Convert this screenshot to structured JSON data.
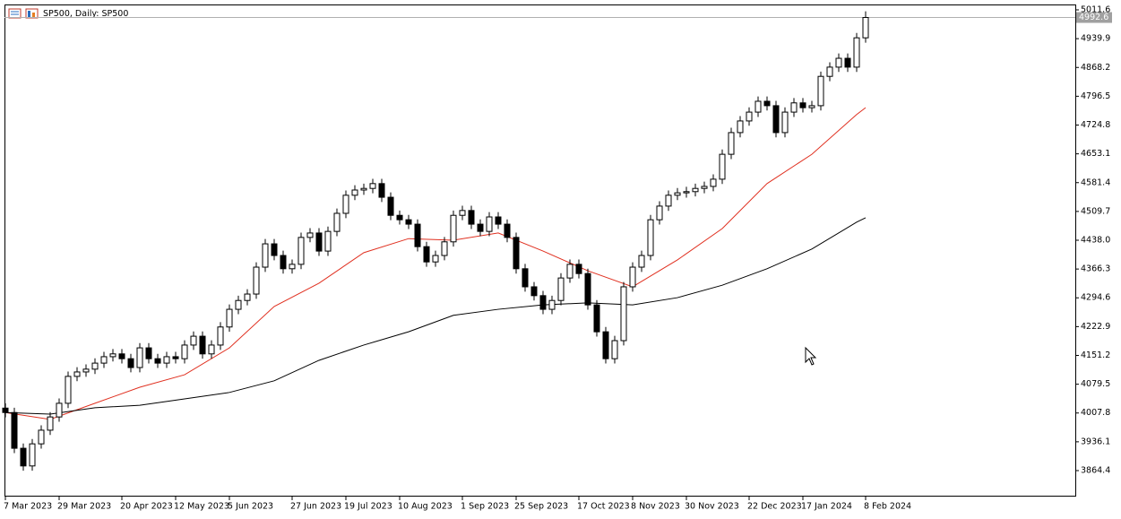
{
  "chart_data": {
    "type": "candlestick",
    "title": "SP500, Daily: SP500",
    "categories": [
      "7 Mar 2023",
      null,
      null,
      null,
      null,
      null,
      "29 Mar 2023",
      null,
      null,
      null,
      null,
      null,
      null,
      "20 Apr 2023",
      null,
      null,
      null,
      null,
      null,
      "12 May 2023",
      null,
      null,
      null,
      null,
      null,
      "5 Jun 2023",
      null,
      null,
      null,
      null,
      null,
      null,
      "27 Jun 2023",
      null,
      null,
      null,
      null,
      null,
      "19 Jul 2023",
      null,
      null,
      null,
      null,
      null,
      "10 Aug 2023",
      null,
      null,
      null,
      null,
      null,
      null,
      "1 Sep 2023",
      null,
      null,
      null,
      null,
      null,
      "25 Sep 2023",
      null,
      null,
      null,
      null,
      null,
      null,
      "17 Oct 2023",
      null,
      null,
      null,
      null,
      null,
      "8 Nov 2023",
      null,
      null,
      null,
      null,
      null,
      "30 Nov 2023",
      null,
      null,
      null,
      null,
      null,
      null,
      "22 Dec 2023",
      null,
      null,
      null,
      null,
      null,
      "17 Jan 2024",
      null,
      null,
      null,
      null,
      null,
      null,
      "8 Feb 2024"
    ],
    "open": [
      4020,
      4009,
      3920,
      3876,
      3931,
      3965,
      3998,
      4032,
      4099,
      4110,
      4117,
      4132,
      4148,
      4155,
      4143,
      4121,
      4170,
      4143,
      4132,
      4148,
      4143,
      4177,
      4199,
      4155,
      4177,
      4222,
      4266,
      4288,
      4304,
      4371,
      4429,
      4400,
      4367,
      4378,
      4445,
      4456,
      4411,
      4460,
      4505,
      4550,
      4563,
      4567,
      4579,
      4545,
      4500,
      4489,
      4478,
      4422,
      4384,
      4400,
      4434,
      4500,
      4512,
      4478,
      4460,
      4496,
      4478,
      4445,
      4367,
      4322,
      4300,
      4266,
      4288,
      4344,
      4378,
      4355,
      4277,
      4210,
      4143,
      4188,
      4322,
      4371,
      4400,
      4489,
      4523,
      4550,
      4556,
      4559,
      4567,
      4572,
      4590,
      4652,
      4706,
      4735,
      4757,
      4784,
      4773,
      4706,
      4757,
      4780,
      4768,
      4773,
      4846,
      4869,
      4891,
      4869,
      4942
    ],
    "high": [
      4032,
      4021,
      3932,
      3943,
      3977,
      4010,
      4044,
      4111,
      4122,
      4129,
      4144,
      4160,
      4167,
      4167,
      4155,
      4182,
      4182,
      4155,
      4160,
      4160,
      4189,
      4211,
      4211,
      4189,
      4234,
      4278,
      4300,
      4316,
      4383,
      4441,
      4441,
      4412,
      4390,
      4457,
      4468,
      4468,
      4472,
      4517,
      4562,
      4575,
      4579,
      4591,
      4591,
      4557,
      4512,
      4501,
      4490,
      4434,
      4412,
      4446,
      4512,
      4524,
      4524,
      4490,
      4508,
      4508,
      4490,
      4457,
      4379,
      4334,
      4312,
      4300,
      4356,
      4390,
      4390,
      4367,
      4289,
      4222,
      4200,
      4334,
      4383,
      4412,
      4501,
      4535,
      4562,
      4568,
      4571,
      4579,
      4584,
      4602,
      4664,
      4718,
      4747,
      4769,
      4796,
      4796,
      4785,
      4769,
      4792,
      4792,
      4785,
      4858,
      4881,
      4903,
      4903,
      4954,
      5008
    ],
    "low": [
      3997,
      3908,
      3864,
      3864,
      3919,
      3953,
      3986,
      4020,
      4087,
      4098,
      4105,
      4120,
      4136,
      4131,
      4109,
      4109,
      4131,
      4120,
      4120,
      4131,
      4131,
      4165,
      4143,
      4143,
      4165,
      4210,
      4254,
      4276,
      4292,
      4359,
      4388,
      4355,
      4355,
      4366,
      4433,
      4399,
      4399,
      4448,
      4493,
      4538,
      4551,
      4555,
      4533,
      4488,
      4477,
      4466,
      4410,
      4372,
      4372,
      4388,
      4422,
      4488,
      4466,
      4448,
      4448,
      4466,
      4433,
      4355,
      4310,
      4288,
      4254,
      4254,
      4276,
      4332,
      4343,
      4265,
      4198,
      4131,
      4131,
      4176,
      4310,
      4359,
      4388,
      4477,
      4511,
      4538,
      4544,
      4547,
      4555,
      4560,
      4578,
      4640,
      4694,
      4723,
      4745,
      4761,
      4694,
      4694,
      4745,
      4756,
      4756,
      4761,
      4834,
      4857,
      4857,
      4857,
      4930
    ],
    "close": [
      4009,
      3920,
      3876,
      3931,
      3965,
      3998,
      4032,
      4099,
      4110,
      4117,
      4132,
      4148,
      4155,
      4143,
      4121,
      4170,
      4143,
      4132,
      4148,
      4143,
      4177,
      4199,
      4155,
      4177,
      4222,
      4266,
      4288,
      4304,
      4371,
      4429,
      4400,
      4367,
      4378,
      4445,
      4456,
      4411,
      4460,
      4505,
      4550,
      4563,
      4567,
      4579,
      4545,
      4500,
      4489,
      4478,
      4422,
      4384,
      4400,
      4434,
      4500,
      4512,
      4478,
      4460,
      4496,
      4478,
      4445,
      4367,
      4322,
      4300,
      4266,
      4288,
      4344,
      4378,
      4355,
      4277,
      4210,
      4143,
      4188,
      4322,
      4371,
      4400,
      4489,
      4523,
      4550,
      4556,
      4559,
      4567,
      4572,
      4590,
      4652,
      4706,
      4735,
      4757,
      4784,
      4773,
      4706,
      4757,
      4780,
      4768,
      4773,
      4846,
      4869,
      4891,
      4869,
      4942,
      4992.6
    ],
    "up_color": "#ffffff",
    "down_color": "#000000",
    "outline_color": "#000000",
    "overlays": [
      {
        "color": "#e03020",
        "x": [
          0,
          5,
          10,
          15,
          20,
          25,
          30,
          35,
          40,
          45,
          50,
          55,
          60,
          65,
          70,
          75,
          80,
          85,
          90,
          95,
          96
        ],
        "values": [
          4009,
          3992,
          4032,
          4072,
          4103,
          4170,
          4273,
          4331,
          4407,
          4442,
          4438,
          4456,
          4411,
          4362,
          4322,
          4389,
          4467,
          4579,
          4652,
          4751,
          4768
        ]
      },
      {
        "color": "#000000",
        "x": [
          0,
          5,
          10,
          15,
          20,
          25,
          30,
          35,
          40,
          45,
          50,
          55,
          60,
          65,
          70,
          75,
          80,
          85,
          90,
          95,
          96
        ],
        "values": [
          4009,
          4005,
          4021,
          4027,
          4043,
          4059,
          4088,
          4139,
          4177,
          4210,
          4251,
          4266,
          4277,
          4282,
          4277,
          4295,
          4326,
          4367,
          4416,
          4483,
          4494
        ]
      }
    ],
    "last_price": 4992.6,
    "ylim": [
      3801.9,
      5025.0
    ],
    "yticks": [
      5011.6,
      4939.9,
      4868.2,
      4796.5,
      4724.8,
      4653.1,
      4581.4,
      4509.7,
      {
        "value": 4438,
        "label": "4438.0"
      },
      4366.3,
      4294.6,
      4222.9,
      4151.2,
      4079.5,
      4007.8,
      3936.1,
      3864.4
    ]
  }
}
